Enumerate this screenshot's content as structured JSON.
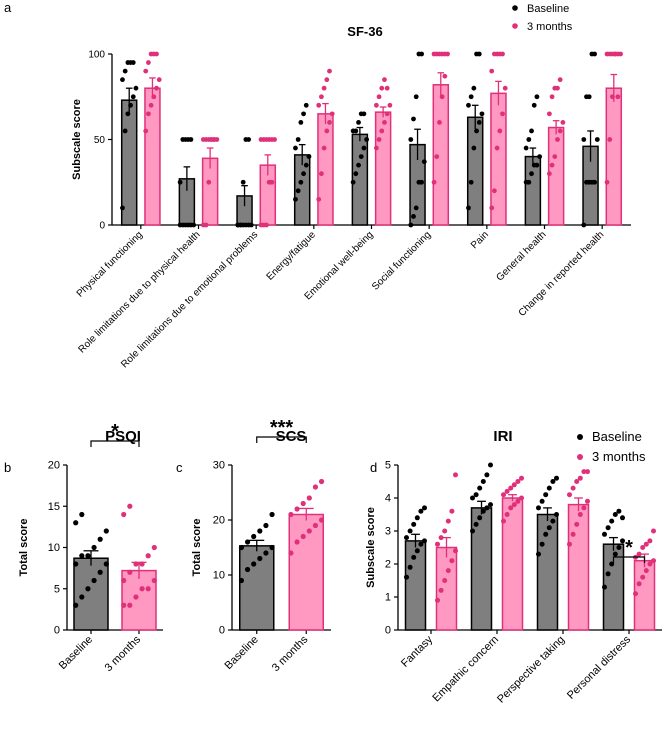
{
  "colors": {
    "baseline_bar": "#7f7f7f",
    "baseline_dot": "#000000",
    "months_bar": "#ff99c2",
    "months_edge": "#e0307a",
    "months_dot": "#e0307a"
  },
  "chart_data": [
    {
      "panel": "a",
      "type": "bar",
      "title": "SF-36",
      "xlabel": "",
      "ylabel": "Subscale score",
      "ylim": [
        0,
        100
      ],
      "yticks": [
        0,
        50,
        100
      ],
      "legend": {
        "placement": "top-right",
        "entries": [
          "Baseline",
          "3 months"
        ]
      },
      "categories": [
        "Physical functioning",
        "Role limitations due to physical health",
        "Role limitations due to emotional problems",
        "Energy/fatigue",
        "Emotional well-being",
        "Social functioning",
        "Pain",
        "General health",
        "Change in reported health"
      ],
      "series": [
        {
          "name": "Baseline",
          "values": [
            73,
            27,
            17,
            41,
            53,
            47,
            63,
            40,
            46
          ],
          "sem": [
            7,
            7,
            6,
            6,
            4,
            9,
            7,
            5,
            9
          ],
          "points": [
            [
              10,
              55,
              65,
              70,
              75,
              80,
              85,
              90,
              95,
              95,
              95
            ],
            [
              0,
              0,
              0,
              0,
              0,
              0,
              25,
              50,
              50,
              50,
              50
            ],
            [
              0,
              0,
              0,
              0,
              0,
              0,
              0,
              0,
              25,
              50,
              50
            ],
            [
              15,
              20,
              25,
              30,
              35,
              40,
              45,
              50,
              60,
              65,
              70
            ],
            [
              25,
              30,
              35,
              40,
              45,
              50,
              55,
              55,
              60,
              65,
              65
            ],
            [
              0,
              5,
              10,
              25,
              25,
              37,
              50,
              62,
              75,
              100,
              100
            ],
            [
              10,
              25,
              45,
              55,
              60,
              65,
              70,
              75,
              80,
              100,
              100
            ],
            [
              25,
              25,
              30,
              35,
              35,
              40,
              45,
              50,
              55,
              70,
              75
            ],
            [
              0,
              25,
              25,
              25,
              25,
              50,
              50,
              75,
              75,
              100,
              100
            ]
          ]
        },
        {
          "name": "3 months",
          "values": [
            80,
            39,
            35,
            65,
            66,
            82,
            77,
            57,
            80
          ],
          "sem": [
            6,
            6,
            6,
            6,
            3,
            7,
            7,
            4,
            8
          ],
          "points": [
            [
              55,
              65,
              70,
              75,
              80,
              85,
              90,
              95,
              100,
              100,
              100
            ],
            [
              0,
              0,
              25,
              50,
              50,
              50,
              50,
              50,
              50,
              50,
              50
            ],
            [
              0,
              0,
              0,
              25,
              25,
              50,
              50,
              50,
              50,
              50,
              50
            ],
            [
              15,
              30,
              45,
              55,
              60,
              65,
              70,
              75,
              80,
              85,
              90
            ],
            [
              45,
              50,
              55,
              60,
              65,
              70,
              70,
              75,
              80,
              85,
              80
            ],
            [
              25,
              40,
              60,
              75,
              87,
              100,
              100,
              100,
              100,
              100,
              100
            ],
            [
              10,
              20,
              45,
              55,
              65,
              80,
              90,
              100,
              100,
              100,
              100
            ],
            [
              30,
              35,
              40,
              50,
              55,
              60,
              65,
              75,
              80,
              80,
              85
            ],
            [
              25,
              50,
              75,
              100,
              100,
              100,
              100,
              100,
              100,
              100,
              75
            ]
          ]
        }
      ]
    },
    {
      "panel": "b",
      "type": "bar",
      "title": "PSQI",
      "xlabel": "",
      "ylabel": "Total score",
      "ylim": [
        0,
        20
      ],
      "yticks": [
        0,
        5,
        10,
        15,
        20
      ],
      "categories": [
        "Baseline",
        "3 months"
      ],
      "series": [
        {
          "name": "Baseline",
          "values": [
            8.7,
            7.2
          ],
          "sem": [
            0.9,
            1.0
          ],
          "points": [
            [
              3,
              4,
              5,
              6,
              7,
              8,
              8,
              9,
              9,
              10,
              11,
              12,
              13,
              14
            ],
            [
              3,
              3,
              4,
              5,
              5,
              6,
              6,
              7,
              8,
              8,
              9,
              10,
              14,
              15
            ]
          ]
        }
      ],
      "significance": "*"
    },
    {
      "panel": "c",
      "type": "bar",
      "title": "SCS",
      "xlabel": "",
      "ylabel": "Total score",
      "ylim": [
        0,
        30
      ],
      "yticks": [
        0,
        10,
        20,
        30
      ],
      "categories": [
        "Baseline",
        "3 months"
      ],
      "series": [
        {
          "name": "Baseline",
          "values": [
            15.3,
            21.0
          ],
          "sem": [
            1.0,
            1.1
          ],
          "points": [
            [
              9,
              11,
              12,
              13,
              14,
              15,
              15,
              16,
              17,
              18,
              19,
              21
            ],
            [
              14,
              16,
              17,
              18,
              19,
              20,
              21,
              22,
              23,
              24,
              26,
              27
            ]
          ]
        }
      ],
      "significance": "***"
    },
    {
      "panel": "d",
      "type": "bar",
      "title": "IRI",
      "xlabel": "",
      "ylabel": "Subscale score",
      "ylim": [
        0,
        5
      ],
      "yticks": [
        0,
        1,
        2,
        3,
        4,
        5
      ],
      "legend": {
        "placement": "top-right",
        "entries": [
          "Baseline",
          "3 months"
        ]
      },
      "categories": [
        "Fantasy",
        "Empathic concern",
        "Perspective taking",
        "Personal distress"
      ],
      "series": [
        {
          "name": "Baseline",
          "values": [
            2.7,
            3.7,
            3.5,
            2.6
          ],
          "sem": [
            0.2,
            0.2,
            0.2,
            0.2
          ],
          "points": [
            [
              1.6,
              1.9,
              2.2,
              2.4,
              2.6,
              2.7,
              2.8,
              3.0,
              3.2,
              3.4,
              3.6,
              3.7
            ],
            [
              3.0,
              3.2,
              3.4,
              3.6,
              3.7,
              3.8,
              4.0,
              4.1,
              4.3,
              4.5,
              4.7,
              5.0
            ],
            [
              2.3,
              2.6,
              2.9,
              3.1,
              3.3,
              3.5,
              3.7,
              3.9,
              4.1,
              4.3,
              4.5,
              4.6
            ],
            [
              1.3,
              1.7,
              2.0,
              2.3,
              2.5,
              2.7,
              2.9,
              3.1,
              3.3,
              3.5,
              3.6,
              3.4
            ]
          ]
        },
        {
          "name": "3 months",
          "values": [
            2.5,
            4.0,
            3.8,
            2.1
          ],
          "sem": [
            0.3,
            0.1,
            0.2,
            0.2
          ],
          "points": [
            [
              0.9,
              1.2,
              1.5,
              1.8,
              2.1,
              2.4,
              2.6,
              2.8,
              3.0,
              3.3,
              3.6,
              4.7
            ],
            [
              3.3,
              3.5,
              3.7,
              3.8,
              3.9,
              4.0,
              4.1,
              4.2,
              4.3,
              4.4,
              4.5,
              4.6
            ],
            [
              2.6,
              2.9,
              3.2,
              3.5,
              3.7,
              3.9,
              4.1,
              4.3,
              4.5,
              4.6,
              4.8,
              4.8
            ],
            [
              1.1,
              1.4,
              1.6,
              1.8,
              2.0,
              2.1,
              2.2,
              2.3,
              2.5,
              2.6,
              2.7,
              3.0
            ]
          ]
        }
      ],
      "significance": "*"
    }
  ],
  "panel_labels": [
    "a",
    "b",
    "c",
    "d"
  ]
}
